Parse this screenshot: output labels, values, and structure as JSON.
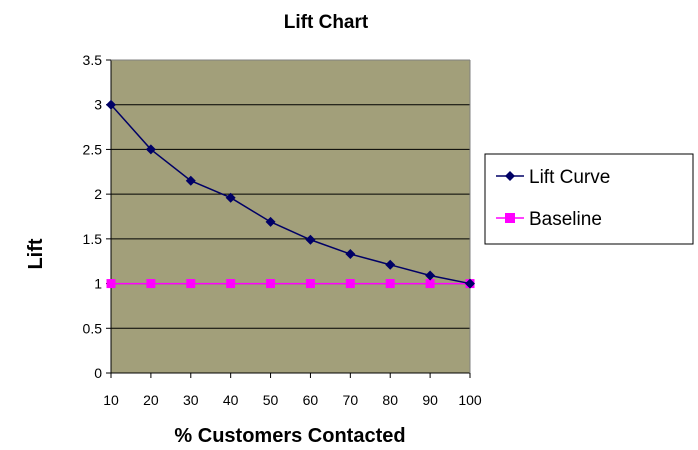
{
  "chart_data": {
    "type": "line",
    "title": "Lift Chart",
    "xlabel": "% Customers Contacted",
    "ylabel": "Lift",
    "x": [
      10,
      20,
      30,
      40,
      50,
      60,
      70,
      80,
      90,
      100
    ],
    "x_tick_labels": [
      "10",
      "20",
      "30",
      "40",
      "50",
      "60",
      "70",
      "80",
      "90",
      "100"
    ],
    "y_tick_labels": [
      "0",
      "0.5",
      "1",
      "1.5",
      "2",
      "2.5",
      "3",
      "3.5"
    ],
    "ylim": [
      0,
      3.5
    ],
    "y_ticks": [
      0,
      0.5,
      1,
      1.5,
      2,
      2.5,
      3,
      3.5
    ],
    "grid": "horizontal",
    "legend_position": "right",
    "plot_background": "#A29F7A",
    "series": [
      {
        "name": "Lift Curve",
        "color": "#000066",
        "marker": "diamond",
        "values": [
          3.0,
          2.5,
          2.15,
          1.96,
          1.69,
          1.49,
          1.33,
          1.21,
          1.09,
          1.0
        ]
      },
      {
        "name": "Baseline",
        "color": "#FF00FF",
        "marker": "square",
        "values": [
          1,
          1,
          1,
          1,
          1,
          1,
          1,
          1,
          1,
          1
        ]
      }
    ]
  }
}
